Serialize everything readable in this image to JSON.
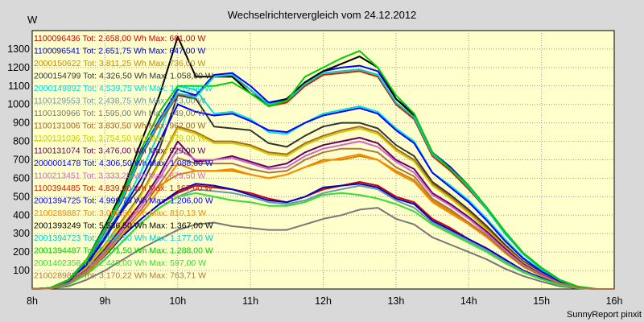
{
  "chart_data": {
    "type": "line",
    "title": "Wechselrichtervergleich vom 24.12.2012",
    "ylabel": "W",
    "xlabel": "",
    "ylim": [
      0,
      1400
    ],
    "xlim": [
      8,
      16
    ],
    "yticks": [
      100,
      200,
      300,
      400,
      500,
      600,
      700,
      800,
      900,
      1000,
      1100,
      1200,
      1300
    ],
    "xticks": [
      "8h",
      "9h",
      "10h",
      "11h",
      "12h",
      "13h",
      "14h",
      "15h",
      "16h"
    ],
    "grid": true,
    "legend_position": "top-left",
    "plot_background": "#ffffcc",
    "x": [
      8.0,
      8.25,
      8.5,
      8.75,
      9.0,
      9.25,
      9.5,
      9.75,
      10.0,
      10.25,
      10.5,
      10.75,
      11.0,
      11.25,
      11.5,
      11.75,
      12.0,
      12.25,
      12.5,
      12.75,
      13.0,
      13.25,
      13.5,
      13.75,
      14.0,
      14.25,
      14.5,
      14.75,
      15.0,
      15.25,
      15.5,
      15.75,
      16.0
    ],
    "series": [
      {
        "name": "1100096436 Tot: 2.658,00 Wh Max: 661,00 W",
        "color": "#cc0000",
        "values": [
          0,
          5,
          30,
          90,
          180,
          290,
          380,
          460,
          520,
          560,
          550,
          540,
          520,
          490,
          470,
          500,
          540,
          560,
          580,
          560,
          500,
          470,
          380,
          330,
          270,
          220,
          160,
          100,
          60,
          25,
          8,
          0,
          0
        ]
      },
      {
        "name": "1100096541 Tot: 2.651,75 Wh Max: 647,00 W",
        "color": "#0000cc",
        "values": [
          0,
          5,
          30,
          90,
          180,
          290,
          380,
          460,
          530,
          570,
          560,
          540,
          510,
          480,
          470,
          500,
          550,
          560,
          570,
          550,
          490,
          460,
          370,
          320,
          270,
          220,
          160,
          100,
          60,
          25,
          8,
          0,
          0
        ]
      },
      {
        "name": "2000150622 Tot: 3.811,25 Wh Max: 736,00 W",
        "color": "#cc8800",
        "values": [
          0,
          5,
          35,
          110,
          220,
          350,
          470,
          560,
          620,
          640,
          640,
          640,
          620,
          600,
          620,
          660,
          700,
          700,
          720,
          700,
          640,
          590,
          480,
          420,
          350,
          280,
          200,
          130,
          80,
          35,
          10,
          0,
          0
        ]
      },
      {
        "name": "2000154799 Tot: 4.326,50 Wh Max: 1.058,00 W",
        "color": "#333333",
        "values": [
          0,
          5,
          40,
          130,
          270,
          430,
          560,
          760,
          1050,
          1030,
          880,
          870,
          860,
          790,
          770,
          830,
          880,
          900,
          900,
          870,
          780,
          720,
          580,
          510,
          430,
          340,
          240,
          150,
          90,
          40,
          10,
          0,
          0
        ]
      },
      {
        "name": "2000149892 Tot: 4.539,75 Wh Max: 1.116,00 W",
        "color": "#00dddd",
        "values": [
          0,
          5,
          45,
          140,
          290,
          450,
          640,
          850,
          1100,
          1080,
          950,
          960,
          920,
          850,
          840,
          900,
          950,
          970,
          990,
          960,
          870,
          800,
          630,
          560,
          480,
          380,
          270,
          170,
          100,
          45,
          12,
          0,
          0
        ]
      },
      {
        "name": "1100129553 Tot: 2.438,75 Wh Max: 623,00 W",
        "color": "#6699aa",
        "values": [
          0,
          4,
          25,
          80,
          160,
          260,
          360,
          440,
          500,
          540,
          530,
          520,
          500,
          470,
          460,
          480,
          520,
          540,
          560,
          540,
          480,
          440,
          360,
          310,
          260,
          210,
          150,
          95,
          55,
          22,
          6,
          0,
          0
        ]
      },
      {
        "name": "1100130966 Tot: 1.595,00 Wh Max: 449,00 W",
        "color": "#777777",
        "values": [
          0,
          3,
          15,
          50,
          100,
          160,
          220,
          270,
          320,
          350,
          360,
          340,
          330,
          320,
          320,
          350,
          380,
          400,
          430,
          440,
          380,
          350,
          280,
          240,
          200,
          160,
          110,
          70,
          40,
          15,
          4,
          0,
          0
        ]
      },
      {
        "name": "1100131006 Tot: 3.830,50 Wh Max: 962,00 W",
        "color": "#aa6622",
        "values": [
          0,
          5,
          38,
          120,
          240,
          380,
          520,
          690,
          880,
          850,
          800,
          800,
          780,
          740,
          730,
          790,
          830,
          860,
          880,
          850,
          760,
          700,
          570,
          500,
          420,
          330,
          230,
          145,
          85,
          38,
          10,
          0,
          0
        ]
      },
      {
        "name": "1100131036 Tot: 3.754,50 Wh Max: 979,00 W",
        "color": "#cccc00",
        "values": [
          0,
          5,
          36,
          115,
          235,
          370,
          510,
          680,
          870,
          840,
          790,
          790,
          770,
          730,
          720,
          780,
          820,
          850,
          870,
          840,
          750,
          690,
          560,
          490,
          410,
          320,
          225,
          140,
          82,
          36,
          10,
          0,
          0
        ]
      },
      {
        "name": "1100131074 Tot: 3.476,00 Wh Max: 929,00 W",
        "color": "#660066",
        "values": [
          0,
          5,
          34,
          105,
          215,
          340,
          470,
          620,
          800,
          690,
          700,
          720,
          690,
          660,
          680,
          740,
          780,
          800,
          820,
          790,
          700,
          650,
          520,
          460,
          390,
          310,
          220,
          135,
          80,
          34,
          9,
          0,
          0
        ]
      },
      {
        "name": "2000001478 Tot: 4.306,50 Wh Max: 1.088,00 W",
        "color": "#0000ff",
        "values": [
          0,
          5,
          42,
          135,
          280,
          440,
          600,
          800,
          1000,
          960,
          940,
          950,
          910,
          860,
          850,
          900,
          940,
          960,
          980,
          950,
          860,
          790,
          630,
          550,
          470,
          370,
          260,
          165,
          95,
          42,
          11,
          0,
          0
        ]
      },
      {
        "name": "1100213451 Tot: 3.333,25 Wh Max: 879,50 W",
        "color": "#cc66cc",
        "values": [
          0,
          5,
          32,
          100,
          205,
          330,
          450,
          600,
          760,
          700,
          700,
          710,
          680,
          650,
          660,
          720,
          760,
          780,
          800,
          770,
          690,
          630,
          510,
          450,
          380,
          300,
          210,
          130,
          76,
          32,
          9,
          0,
          0
        ]
      },
      {
        "name": "1100394485 Tot: 4.839,00 Wh Max: 1.167,00 W",
        "color": "#cc2200",
        "values": [
          0,
          6,
          46,
          150,
          310,
          490,
          720,
          900,
          1050,
          1050,
          1150,
          1150,
          1080,
          990,
          1010,
          1100,
          1160,
          1170,
          1180,
          1150,
          1000,
          920,
          720,
          640,
          540,
          430,
          300,
          190,
          110,
          48,
          12,
          0,
          0
        ]
      },
      {
        "name": "2001394725 Tot: 4.999,75 Wh Max: 1.206,00 W",
        "color": "#0000ff",
        "values": [
          0,
          6,
          48,
          155,
          320,
          510,
          740,
          920,
          1080,
          1050,
          1160,
          1170,
          1100,
          1010,
          1030,
          1120,
          1180,
          1200,
          1210,
          1180,
          1030,
          950,
          740,
          660,
          560,
          440,
          310,
          195,
          115,
          50,
          13,
          0,
          0
        ]
      },
      {
        "name": "2100289887 Tot: 3.008,50 Wh Max: 810,13 W",
        "color": "#ff8800",
        "values": [
          0,
          4,
          28,
          90,
          185,
          300,
          410,
          540,
          680,
          640,
          640,
          650,
          620,
          600,
          620,
          660,
          690,
          710,
          730,
          700,
          630,
          580,
          470,
          410,
          350,
          280,
          195,
          120,
          70,
          30,
          8,
          0,
          0
        ]
      },
      {
        "name": "2001393249 Tot: 5.536,50 Wh Max: 1.367,00 W",
        "color": "#000000",
        "values": [
          0,
          6,
          50,
          160,
          340,
          540,
          800,
          1050,
          1367,
          1150,
          1150,
          1150,
          1060,
          1000,
          1030,
          1120,
          1180,
          1220,
          1260,
          1200,
          1030,
          940,
          740,
          650,
          550,
          440,
          300,
          190,
          110,
          48,
          12,
          0,
          0
        ]
      },
      {
        "name": "2001394723 Tot: 5.155,50 Wh Max: 1.177,00 W",
        "color": "#00cccc",
        "values": [
          0,
          6,
          48,
          155,
          320,
          500,
          730,
          910,
          1060,
          1040,
          1150,
          1160,
          1080,
          1000,
          1020,
          1110,
          1170,
          1180,
          1190,
          1160,
          1010,
          930,
          730,
          650,
          550,
          430,
          300,
          190,
          110,
          48,
          12,
          0,
          0
        ]
      },
      {
        "name": "2001394487 Tot: 5.371,50 Wh Max: 1.288,00 W",
        "color": "#00cc00",
        "values": [
          0,
          6,
          50,
          160,
          330,
          520,
          760,
          960,
          1100,
          1100,
          1100,
          1120,
          1060,
          990,
          1020,
          1150,
          1200,
          1250,
          1290,
          1200,
          1050,
          950,
          740,
          650,
          560,
          440,
          310,
          195,
          115,
          50,
          13,
          0,
          0
        ]
      },
      {
        "name": "2001402358 Tot: 2.445,00 Wh Max: 597,00 W",
        "color": "#33dd33",
        "values": [
          0,
          4,
          25,
          80,
          160,
          260,
          360,
          440,
          500,
          520,
          500,
          480,
          470,
          450,
          450,
          470,
          510,
          520,
          510,
          490,
          460,
          420,
          350,
          300,
          250,
          200,
          140,
          90,
          52,
          22,
          6,
          0,
          0
        ]
      },
      {
        "name": "2100289839 Tot: 3.170,22 Wh Max: 763,71 W",
        "color": "#aa7744",
        "values": [
          0,
          4,
          30,
          95,
          195,
          315,
          430,
          570,
          710,
          680,
          680,
          680,
          650,
          630,
          640,
          700,
          740,
          760,
          760,
          740,
          660,
          610,
          490,
          430,
          360,
          290,
          200,
          125,
          72,
          31,
          8,
          0,
          0
        ]
      }
    ]
  },
  "footer": "SunnyReport pinxit"
}
